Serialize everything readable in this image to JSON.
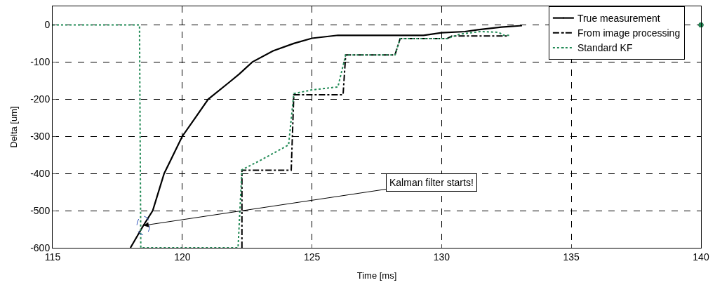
{
  "chart_data": {
    "type": "line",
    "xlabel": "Time [ms]",
    "ylabel": "Delta [um]",
    "xlim": [
      115,
      140
    ],
    "ylim": [
      -600,
      50
    ],
    "xticks": [
      115,
      120,
      125,
      130,
      135,
      140
    ],
    "yticks": [
      -600,
      -500,
      -400,
      -300,
      -200,
      -100,
      0
    ],
    "grid": true,
    "legend": "top right",
    "series": [
      {
        "name": "True measurement",
        "color": "#000000",
        "line_style": "solid",
        "x": [
          118.0,
          118.5,
          118.86,
          119.3,
          120.0,
          120.5,
          121.0,
          121.8,
          122.2,
          122.7,
          123.5,
          124.3,
          125.0,
          126.0,
          127.0,
          128.0,
          129.3,
          130.0,
          130.9,
          131.4,
          132.3,
          133.1
        ],
        "values": [
          -600,
          -540,
          -500,
          -400,
          -300,
          -250,
          -200,
          -155,
          -132,
          -100,
          -70,
          -50,
          -36,
          -28,
          -28,
          -28,
          -28,
          -21,
          -18,
          -13,
          -6,
          -2
        ]
      },
      {
        "name": "From image processing",
        "color": "#000000",
        "line_style": "dashdot",
        "x": [
          122.3,
          122.3,
          124.2,
          124.3,
          126.2,
          126.3,
          128.2,
          128.4,
          130.2,
          130.4,
          132.6,
          139.8,
          140.0
        ],
        "values": [
          -600,
          -391,
          -391,
          -188,
          -188,
          -81,
          -81,
          -37,
          -37,
          -30,
          -30,
          null,
          0
        ]
      },
      {
        "name": "Standard KF",
        "color": "#238b57",
        "line_style": "dotted",
        "x": [
          115.0,
          118.35,
          118.4,
          122.15,
          122.3,
          123.0,
          124.1,
          124.3,
          125.0,
          126.0,
          126.3,
          128.2,
          128.4,
          130.2,
          130.7,
          131.5,
          132.2,
          132.4,
          132.6,
          139.8,
          140.0
        ],
        "values": [
          0,
          0,
          -600,
          -600,
          -390,
          -365,
          -323,
          -185,
          -175,
          -167,
          -81,
          -81,
          -37,
          -37,
          -25,
          -18,
          -20,
          -28,
          -28,
          null,
          0
        ]
      }
    ],
    "annotations": [
      {
        "text": "Kalman filter starts!",
        "x": 118.5,
        "y": -540
      }
    ]
  }
}
